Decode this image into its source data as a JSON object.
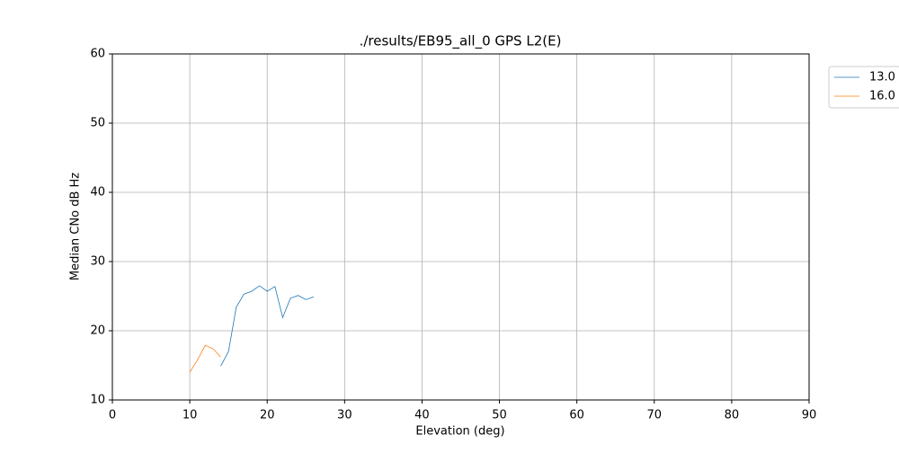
{
  "chart_data": {
    "type": "line",
    "title": "./results/EB95_all_0 GPS L2(E)",
    "x_label": "Elevation (deg)",
    "y_label": "Median CNo dB Hz",
    "xlim": [
      0,
      90
    ],
    "xticks": [
      0,
      10,
      20,
      30,
      40,
      50,
      60,
      70,
      80,
      90
    ],
    "ylim": [
      10,
      60
    ],
    "yticks": [
      10,
      20,
      30,
      40,
      50,
      60
    ],
    "grid": true,
    "legend": "outside upper right",
    "series": [
      {
        "name": "13.0",
        "color": "#1f77b4",
        "x": [
          14,
          15,
          16,
          17,
          18,
          19,
          20,
          21,
          22,
          23,
          24,
          25,
          26
        ],
        "values": [
          14.9,
          17.0,
          23.4,
          25.3,
          25.7,
          26.5,
          25.7,
          26.4,
          21.9,
          24.7,
          25.1,
          24.5,
          24.9
        ]
      },
      {
        "name": "16.0",
        "color": "#ff7f0e",
        "x": [
          10,
          11,
          12,
          13,
          14
        ],
        "values": [
          14.0,
          15.8,
          17.9,
          17.4,
          16.2
        ]
      }
    ]
  }
}
